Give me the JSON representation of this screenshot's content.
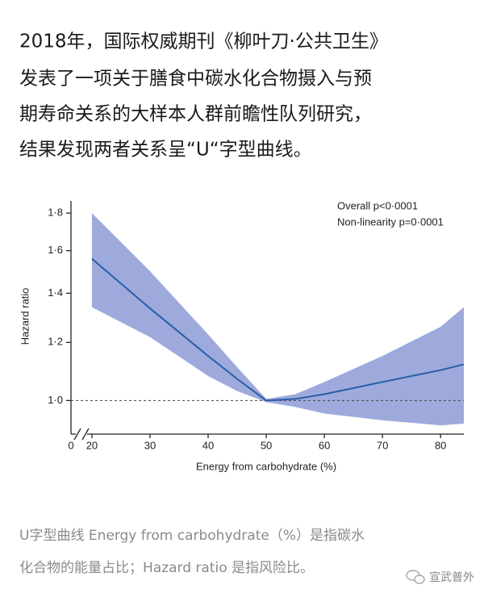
{
  "intro": {
    "lines": [
      "2018年，国际权威期刊《柳叶刀·公共卫生》",
      "发表了一项关于膳食中碳水化合物摄入与预",
      "期寿命关系的大样本人群前瞻性队列研究，",
      "结果发现两者关系呈“U“字型曲线。"
    ]
  },
  "chart_data": {
    "type": "line",
    "x_label": "Energy from carbohydrate (%)",
    "y_label": "Hazard ratio",
    "annotations": [
      "Overall p<0·0001",
      "Non-linearity p=0·0001"
    ],
    "x_break_label": "0",
    "x": [
      20,
      30,
      40,
      45,
      50,
      55,
      60,
      70,
      80,
      84
    ],
    "values": [
      1.56,
      1.335,
      1.15,
      1.07,
      1.0,
      1.005,
      1.02,
      1.06,
      1.1,
      1.12
    ],
    "upper": [
      1.8,
      1.5,
      1.23,
      1.11,
      1.005,
      1.02,
      1.06,
      1.15,
      1.26,
      1.34
    ],
    "lower": [
      1.34,
      1.22,
      1.08,
      1.03,
      0.995,
      0.98,
      0.96,
      0.94,
      0.925,
      0.93
    ],
    "color": "#2a5ea6",
    "band_color": "#8d9bd6",
    "reference_line": 1.0,
    "xlim": [
      16.4,
      84
    ],
    "xticks": [
      20,
      30,
      40,
      50,
      60,
      70,
      80
    ],
    "ylim": [
      0.9,
      1.87
    ],
    "log_y": true,
    "yticks": [
      {
        "value": 1.0,
        "label": "1·0"
      },
      {
        "value": 1.2,
        "label": "1·2"
      },
      {
        "value": 1.4,
        "label": "1·4"
      },
      {
        "value": 1.6,
        "label": "1·6"
      },
      {
        "value": 1.8,
        "label": "1·8"
      }
    ]
  },
  "caption": {
    "lines": [
      "U字型曲线  Energy from carbohydrate（%）是指碳水",
      "化合物的能量占比；Hazard ratio 是指风险比。"
    ]
  },
  "watermark": "宣武普外"
}
